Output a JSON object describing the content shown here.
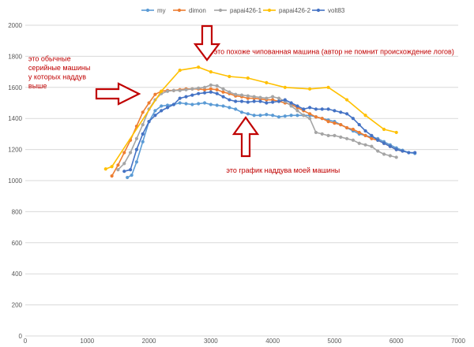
{
  "chart_data": {
    "type": "line",
    "title": "",
    "xlabel": "",
    "ylabel": "",
    "xlim": [
      0,
      7000
    ],
    "ylim": [
      0,
      2000
    ],
    "x_ticks": [
      0,
      1000,
      2000,
      3000,
      4000,
      5000,
      6000,
      7000
    ],
    "y_ticks": [
      0,
      200,
      400,
      600,
      800,
      1000,
      1200,
      1400,
      1600,
      1800,
      2000
    ],
    "grid": "horizontal",
    "legend_position": "top",
    "series": [
      {
        "name": "my",
        "color": "#5b9bd5",
        "x": [
          1650,
          1720,
          1800,
          1900,
          2000,
          2100,
          2200,
          2300,
          2400,
          2500,
          2600,
          2700,
          2800,
          2900,
          3000,
          3100,
          3200,
          3300,
          3400,
          3500,
          3600,
          3700,
          3800,
          3900,
          4000,
          4100,
          4200,
          4300,
          4400,
          4500,
          4600,
          4700,
          4800,
          4900,
          5000,
          5100,
          5200,
          5300,
          5400,
          5500,
          5600,
          5700,
          5800,
          5900,
          6000,
          6100,
          6200,
          6300
        ],
        "y": [
          1020,
          1035,
          1120,
          1250,
          1380,
          1450,
          1480,
          1485,
          1490,
          1500,
          1495,
          1490,
          1495,
          1500,
          1490,
          1485,
          1480,
          1470,
          1460,
          1440,
          1430,
          1420,
          1420,
          1425,
          1420,
          1410,
          1415,
          1420,
          1420,
          1420,
          1420,
          1410,
          1400,
          1390,
          1380,
          1360,
          1340,
          1320,
          1300,
          1290,
          1280,
          1270,
          1250,
          1230,
          1210,
          1195,
          1180,
          1175
        ]
      },
      {
        "name": "dimon",
        "color": "#ed7d31",
        "x": [
          1400,
          1500,
          1600,
          1700,
          1800,
          1900,
          2000,
          2100,
          2200,
          2300,
          2400,
          2500,
          2600,
          2700,
          2800,
          2900,
          3000,
          3100,
          3200,
          3300,
          3400,
          3500,
          3600,
          3700,
          3800,
          3900,
          4000,
          4100,
          4200,
          4300,
          4400,
          4500,
          4600,
          4700,
          4800,
          4900,
          5000,
          5100,
          5200,
          5300,
          5400,
          5500,
          5600,
          5700,
          5800,
          5900,
          6000,
          6100
        ],
        "y": [
          1030,
          1100,
          1180,
          1260,
          1350,
          1440,
          1500,
          1555,
          1575,
          1580,
          1580,
          1585,
          1590,
          1590,
          1590,
          1585,
          1590,
          1585,
          1570,
          1560,
          1545,
          1540,
          1530,
          1530,
          1525,
          1520,
          1520,
          1510,
          1500,
          1490,
          1470,
          1450,
          1430,
          1410,
          1400,
          1380,
          1370,
          1360,
          1340,
          1330,
          1310,
          1290,
          1270,
          1260,
          1240,
          1220,
          1200,
          1190
        ]
      },
      {
        "name": "papai426-1",
        "color": "#a5a5a5",
        "x": [
          1500,
          1600,
          1700,
          1800,
          1900,
          2000,
          2100,
          2200,
          2300,
          2400,
          2500,
          2600,
          2700,
          2800,
          2900,
          3000,
          3100,
          3200,
          3300,
          3400,
          3500,
          3600,
          3700,
          3800,
          3900,
          4000,
          4100,
          4200,
          4300,
          4400,
          4500,
          4600,
          4700,
          4800,
          4900,
          5000,
          5100,
          5200,
          5300,
          5400,
          5500,
          5600,
          5700,
          5800,
          5900,
          6000
        ],
        "y": [
          1070,
          1110,
          1180,
          1270,
          1360,
          1460,
          1520,
          1560,
          1575,
          1580,
          1580,
          1585,
          1590,
          1595,
          1600,
          1615,
          1610,
          1590,
          1570,
          1555,
          1550,
          1545,
          1540,
          1535,
          1530,
          1540,
          1530,
          1510,
          1480,
          1450,
          1420,
          1400,
          1310,
          1300,
          1290,
          1290,
          1280,
          1270,
          1260,
          1240,
          1230,
          1220,
          1190,
          1170,
          1160,
          1150
        ]
      },
      {
        "name": "papai426-2",
        "color": "#ffc000",
        "x": [
          1300,
          1400,
          2200,
          2500,
          2800,
          3000,
          3300,
          3600,
          3900,
          4200,
          4600,
          4900,
          5200,
          5500,
          5800,
          6000
        ],
        "y": [
          1075,
          1090,
          1575,
          1710,
          1730,
          1700,
          1670,
          1660,
          1630,
          1600,
          1590,
          1600,
          1520,
          1420,
          1330,
          1310
        ]
      },
      {
        "name": "volt83",
        "color": "#4472c4",
        "x": [
          1600,
          1700,
          1800,
          1900,
          2000,
          2100,
          2200,
          2300,
          2400,
          2500,
          2600,
          2700,
          2800,
          2900,
          3000,
          3100,
          3200,
          3300,
          3400,
          3500,
          3600,
          3700,
          3800,
          3900,
          4000,
          4100,
          4200,
          4300,
          4400,
          4500,
          4600,
          4700,
          4800,
          4900,
          5000,
          5100,
          5200,
          5300,
          5400,
          5500,
          5600,
          5700,
          5800,
          5900,
          6000,
          6100,
          6200,
          6300
        ],
        "y": [
          1060,
          1070,
          1200,
          1300,
          1380,
          1420,
          1450,
          1470,
          1490,
          1530,
          1540,
          1550,
          1560,
          1565,
          1570,
          1560,
          1540,
          1520,
          1510,
          1510,
          1505,
          1510,
          1510,
          1500,
          1505,
          1510,
          1520,
          1500,
          1480,
          1460,
          1470,
          1460,
          1460,
          1460,
          1450,
          1440,
          1430,
          1400,
          1360,
          1320,
          1290,
          1260,
          1240,
          1220,
          1200,
          1190,
          1180,
          1180
        ]
      }
    ],
    "annotations": [
      {
        "lines": [
          "это похоже чипованная машина (автор не помнит происхождение логов)"
        ],
        "x": 3050,
        "y": 1815
      },
      {
        "lines": [
          "это обычные",
          "серийные машины",
          "у которых наддув",
          "выше"
        ],
        "x": 50,
        "y": 1770
      },
      {
        "lines": [
          "это график наддува моей машины"
        ],
        "x": 3250,
        "y": 1050
      }
    ]
  }
}
